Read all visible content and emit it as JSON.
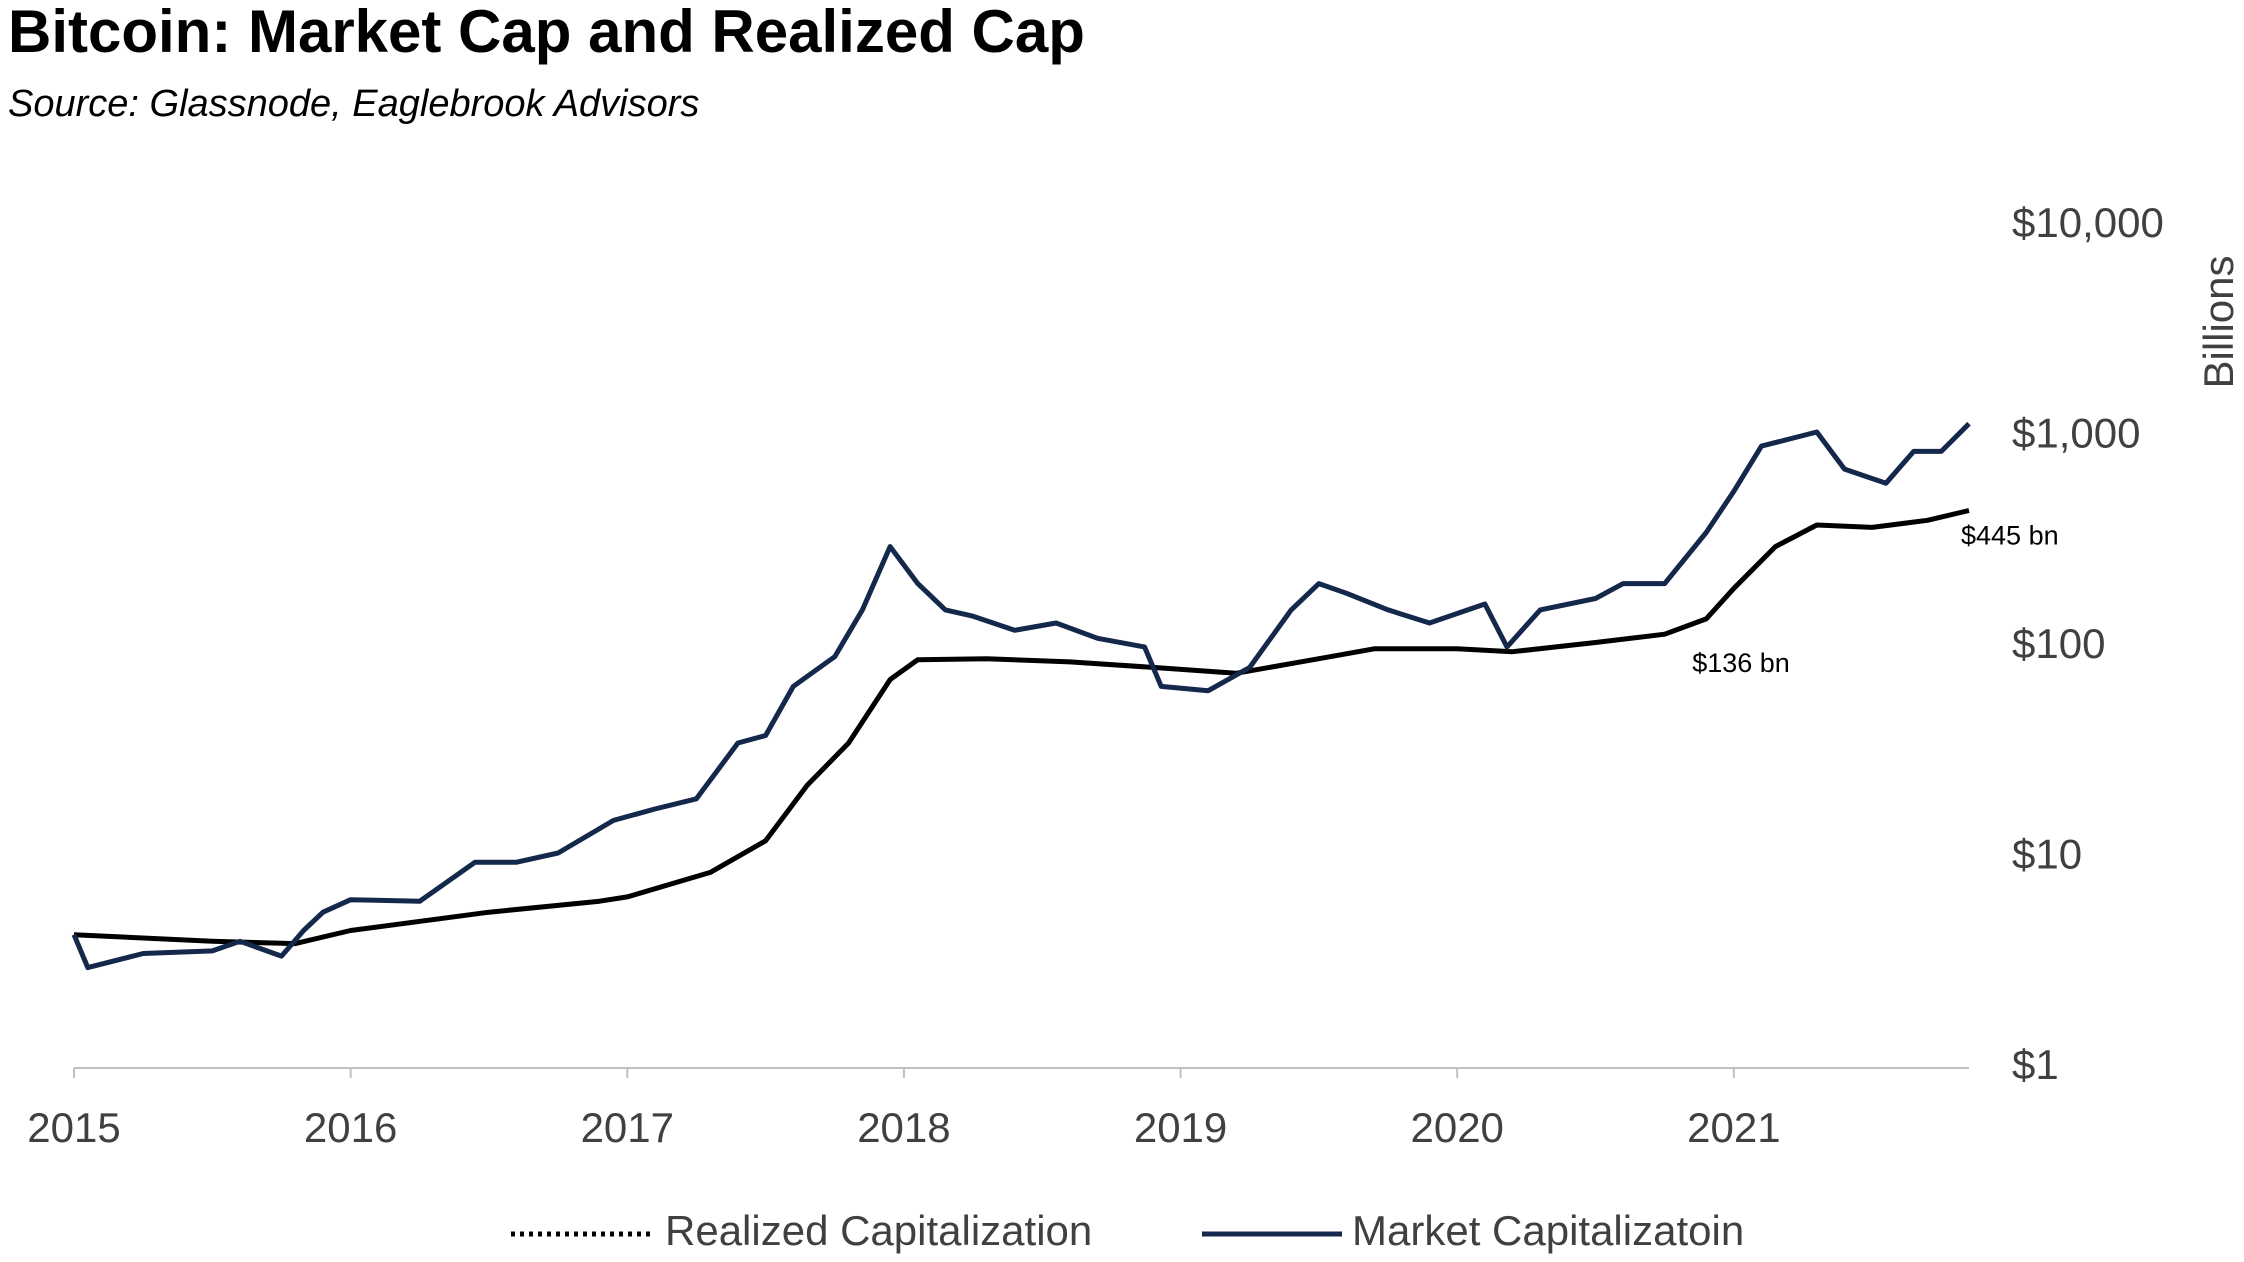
{
  "chart_data": {
    "type": "line",
    "title": "Bitcoin: Market Cap and Realized Cap",
    "subtitle": "Source: Glassnode, Eaglebrook Advisors",
    "y_label": "Billions",
    "log_scale": true,
    "grid": false,
    "legend_position": "bottom",
    "xlim": [
      2015,
      2021.85
    ],
    "xticks": [
      2015,
      2016,
      2017,
      2018,
      2019,
      2020,
      2021
    ],
    "ylim": [
      1,
      10000
    ],
    "yticks": [
      {
        "value": 1,
        "label": "$1"
      },
      {
        "value": 10,
        "label": "$10"
      },
      {
        "value": 100,
        "label": "$100"
      },
      {
        "value": 1000,
        "label": "$1,000"
      },
      {
        "value": 10000,
        "label": "$10,000"
      }
    ],
    "series": [
      {
        "name": "Realized Capitalization",
        "color": "#000000",
        "legend_style": "dotted",
        "x": [
          2015,
          2015.5,
          2015.8,
          2016.0,
          2016.5,
          2016.9,
          2017.0,
          2017.3,
          2017.5,
          2017.65,
          2017.8,
          2017.95,
          2018.05,
          2018.3,
          2018.6,
          2018.9,
          2019.2,
          2019.5,
          2019.7,
          2020.0,
          2020.2,
          2020.5,
          2020.75,
          2020.9,
          2021.0,
          2021.15,
          2021.3,
          2021.5,
          2021.7,
          2021.85
        ],
        "values": [
          4.3,
          4.0,
          3.9,
          4.5,
          5.5,
          6.2,
          6.5,
          8.5,
          12,
          22,
          35,
          70,
          87,
          88,
          85,
          80,
          75,
          88,
          98,
          98,
          95,
          105,
          115,
          136,
          190,
          300,
          380,
          370,
          400,
          445
        ]
      },
      {
        "name": "Market Capitalizatoin",
        "color": "#14284b",
        "legend_style": "solid",
        "x": [
          2015,
          2015.05,
          2015.25,
          2015.5,
          2015.6,
          2015.75,
          2015.83,
          2015.9,
          2016.0,
          2016.25,
          2016.45,
          2016.6,
          2016.75,
          2016.95,
          2017.1,
          2017.25,
          2017.4,
          2017.5,
          2017.6,
          2017.75,
          2017.85,
          2017.95,
          2018.05,
          2018.15,
          2018.25,
          2018.4,
          2018.55,
          2018.7,
          2018.87,
          2018.93,
          2019.1,
          2019.25,
          2019.4,
          2019.5,
          2019.6,
          2019.75,
          2019.9,
          2020.1,
          2020.18,
          2020.3,
          2020.5,
          2020.6,
          2020.75,
          2020.9,
          2021.0,
          2021.1,
          2021.3,
          2021.4,
          2021.55,
          2021.65,
          2021.75,
          2021.85
        ],
        "values": [
          4.3,
          3.0,
          3.5,
          3.6,
          4.0,
          3.4,
          4.5,
          5.5,
          6.3,
          6.2,
          9.5,
          9.5,
          10.5,
          15,
          17,
          19,
          35,
          38,
          65,
          90,
          150,
          300,
          200,
          150,
          140,
          120,
          130,
          110,
          100,
          65,
          62,
          80,
          150,
          200,
          180,
          150,
          130,
          160,
          100,
          150,
          170,
          200,
          200,
          350,
          550,
          900,
          1050,
          700,
          600,
          850,
          850,
          1150
        ]
      }
    ],
    "annotations": [
      {
        "label": "$445 bn",
        "value": 445,
        "x": 2021.85
      },
      {
        "label": "$136 bn",
        "value": 136,
        "x": 2020.9
      }
    ]
  }
}
